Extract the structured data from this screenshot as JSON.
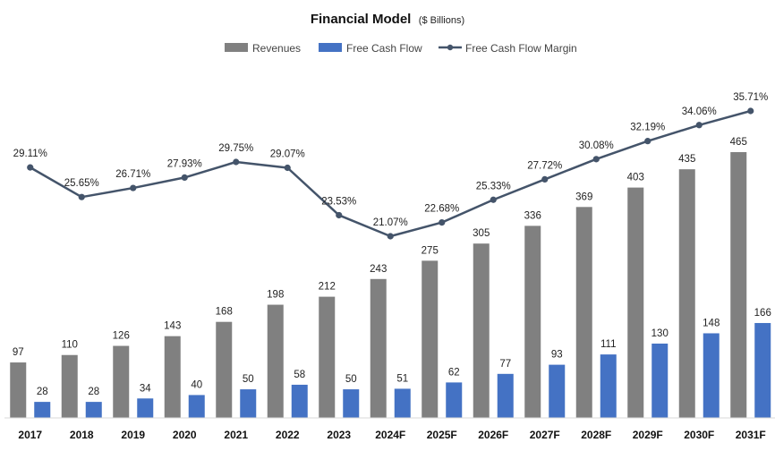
{
  "chart_data": {
    "type": "bar",
    "title": "Financial Model",
    "subtitle": "($ Billions)",
    "categories": [
      "2017",
      "2018",
      "2019",
      "2020",
      "2021",
      "2022",
      "2023",
      "2024F",
      "2025F",
      "2026F",
      "2027F",
      "2028F",
      "2029F",
      "2030F",
      "2031F"
    ],
    "series": [
      {
        "name": "Revenues",
        "type": "bar",
        "color": "#808080",
        "values": [
          97,
          110,
          126,
          143,
          168,
          198,
          212,
          243,
          275,
          305,
          336,
          369,
          403,
          435,
          465
        ],
        "labels": [
          "97",
          "110",
          "126",
          "143",
          "168",
          "198",
          "212",
          "243",
          "275",
          "305",
          "336",
          "369",
          "403",
          "435",
          "465"
        ]
      },
      {
        "name": "Free Cash Flow",
        "type": "bar",
        "color": "#4472C4",
        "values": [
          28,
          28,
          34,
          40,
          50,
          58,
          50,
          51,
          62,
          77,
          93,
          111,
          130,
          148,
          166
        ],
        "labels": [
          "28",
          "28",
          "34",
          "40",
          "50",
          "58",
          "50",
          "51",
          "62",
          "77",
          "93",
          "111",
          "130",
          "148",
          "166"
        ]
      },
      {
        "name": "Free Cash Flow Margin",
        "type": "line",
        "color": "#44546A",
        "values": [
          29.11,
          25.65,
          26.71,
          27.93,
          29.75,
          29.07,
          23.53,
          21.07,
          22.68,
          25.33,
          27.72,
          30.08,
          32.19,
          34.06,
          35.71
        ],
        "labels": [
          "29.11%",
          "25.65%",
          "26.71%",
          "27.93%",
          "29.75%",
          "29.07%",
          "23.53%",
          "21.07%",
          "22.68%",
          "25.33%",
          "27.72%",
          "30.08%",
          "32.19%",
          "34.06%",
          "35.71%"
        ]
      }
    ],
    "ylim": [
      0,
      600
    ],
    "y2lim": [
      0,
      47
    ],
    "legend_position": "top",
    "grid": false
  }
}
